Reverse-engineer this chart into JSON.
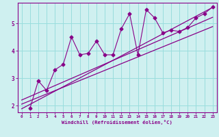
{
  "xlabel": "Windchill (Refroidissement éolien,°C)",
  "bg_color": "#cff0f0",
  "line_color": "#880088",
  "xlim": [
    -0.5,
    23.5
  ],
  "ylim": [
    1.75,
    5.75
  ],
  "xticks": [
    0,
    1,
    2,
    3,
    4,
    5,
    6,
    7,
    8,
    9,
    10,
    11,
    12,
    13,
    14,
    15,
    16,
    17,
    18,
    19,
    20,
    21,
    22,
    23
  ],
  "yticks": [
    2,
    3,
    4,
    5
  ],
  "grid_color": "#99dddd",
  "series1_x": [
    1,
    2,
    3,
    4,
    5,
    6,
    7,
    8,
    9,
    10,
    11,
    12,
    13,
    14,
    15,
    16,
    17,
    18,
    19,
    20,
    21,
    22,
    23
  ],
  "series1_y": [
    1.9,
    2.9,
    2.55,
    3.3,
    3.5,
    4.5,
    3.85,
    3.9,
    4.35,
    3.85,
    3.85,
    4.8,
    5.35,
    3.85,
    5.5,
    5.2,
    4.65,
    4.75,
    4.7,
    4.85,
    5.2,
    5.35,
    5.6
  ],
  "trend1_x": [
    0,
    23
  ],
  "trend1_y": [
    1.88,
    5.58
  ],
  "trend2_x": [
    0,
    23
  ],
  "trend2_y": [
    2.05,
    4.88
  ],
  "trend3_x": [
    0,
    23
  ],
  "trend3_y": [
    2.2,
    5.22
  ]
}
